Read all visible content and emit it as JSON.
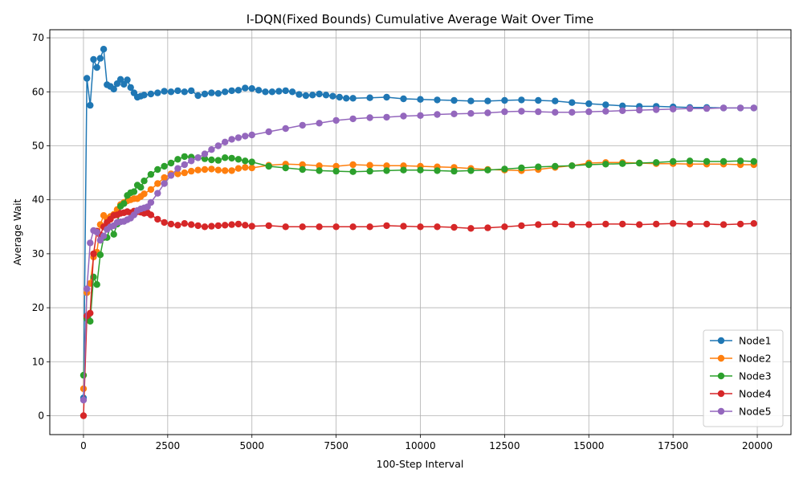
{
  "chart_data": {
    "type": "line",
    "title": "I-DQN(Fixed Bounds) Cumulative Average Wait Over Time",
    "xlabel": "100-Step Interval",
    "ylabel": "Average Wait",
    "xlim": [
      -1000,
      21000
    ],
    "ylim": [
      -3.5,
      71.5
    ],
    "xticks": [
      0,
      2500,
      5000,
      7500,
      10000,
      12500,
      15000,
      17500,
      20000
    ],
    "yticks": [
      0,
      10,
      20,
      30,
      40,
      50,
      60,
      70
    ],
    "grid": true,
    "legend_position": "lower-right",
    "marker": "circle",
    "series": [
      {
        "name": "Node1",
        "color": "#1f77b4",
        "x": [
          0,
          100,
          200,
          300,
          400,
          500,
          600,
          700,
          800,
          900,
          1000,
          1100,
          1200,
          1300,
          1400,
          1500,
          1600,
          1700,
          1800,
          2000,
          2200,
          2400,
          2600,
          2800,
          3000,
          3200,
          3400,
          3600,
          3800,
          4000,
          4200,
          4400,
          4600,
          4800,
          5000,
          5200,
          5400,
          5600,
          5800,
          6000,
          6200,
          6400,
          6600,
          6800,
          7000,
          7200,
          7400,
          7600,
          7800,
          8000,
          8500,
          9000,
          9500,
          10000,
          10500,
          11000,
          11500,
          12000,
          12500,
          13000,
          13500,
          14000,
          14500,
          15000,
          15500,
          16000,
          16500,
          17000,
          17500,
          18000,
          18500,
          19000,
          19500,
          19900
        ],
        "y": [
          3.3,
          62.5,
          57.5,
          66.0,
          64.5,
          66.2,
          67.9,
          61.3,
          61.0,
          60.5,
          61.5,
          62.3,
          61.4,
          62.2,
          60.8,
          59.8,
          59.0,
          59.2,
          59.4,
          59.6,
          59.8,
          60.1,
          60.0,
          60.2,
          60.0,
          60.2,
          59.3,
          59.6,
          59.8,
          59.7,
          60.0,
          60.2,
          60.3,
          60.7,
          60.6,
          60.3,
          60.0,
          60.0,
          60.1,
          60.2,
          60.0,
          59.5,
          59.3,
          59.4,
          59.6,
          59.4,
          59.2,
          59.0,
          58.8,
          58.8,
          58.9,
          59.0,
          58.7,
          58.6,
          58.5,
          58.4,
          58.3,
          58.3,
          58.4,
          58.5,
          58.4,
          58.3,
          58.0,
          57.8,
          57.6,
          57.4,
          57.3,
          57.3,
          57.2,
          57.1,
          57.1,
          57.0,
          57.0,
          57.0
        ]
      },
      {
        "name": "Node2",
        "color": "#ff7f0e",
        "x": [
          0,
          100,
          200,
          300,
          400,
          500,
          600,
          700,
          800,
          900,
          1000,
          1100,
          1200,
          1300,
          1400,
          1500,
          1600,
          1700,
          1800,
          2000,
          2200,
          2400,
          2600,
          2800,
          3000,
          3200,
          3400,
          3600,
          3800,
          4000,
          4200,
          4400,
          4600,
          4800,
          5000,
          5500,
          6000,
          6500,
          7000,
          7500,
          8000,
          8500,
          9000,
          9500,
          10000,
          10500,
          11000,
          11500,
          12000,
          12500,
          13000,
          13500,
          14000,
          14500,
          15000,
          15500,
          16000,
          16500,
          17000,
          17500,
          18000,
          18500,
          19000,
          19500,
          19900
        ],
        "y": [
          5.0,
          22.8,
          24.5,
          29.4,
          30.3,
          35.4,
          37.1,
          36.5,
          36.9,
          37.3,
          38.2,
          39.1,
          39.5,
          39.8,
          40.0,
          40.2,
          40.2,
          40.6,
          41.1,
          41.9,
          43.0,
          44.1,
          44.8,
          44.8,
          45.0,
          45.3,
          45.5,
          45.6,
          45.7,
          45.5,
          45.4,
          45.4,
          45.8,
          46.0,
          45.9,
          46.4,
          46.6,
          46.5,
          46.3,
          46.2,
          46.5,
          46.4,
          46.3,
          46.3,
          46.2,
          46.1,
          46.0,
          45.8,
          45.6,
          45.5,
          45.4,
          45.6,
          46.0,
          46.3,
          46.8,
          46.9,
          46.9,
          46.8,
          46.7,
          46.7,
          46.6,
          46.6,
          46.6,
          46.5,
          46.5
        ]
      },
      {
        "name": "Node3",
        "color": "#2ca02c",
        "x": [
          0,
          100,
          200,
          300,
          400,
          500,
          600,
          700,
          800,
          900,
          1000,
          1100,
          1200,
          1300,
          1400,
          1500,
          1600,
          1700,
          1800,
          2000,
          2200,
          2400,
          2600,
          2800,
          3000,
          3200,
          3400,
          3600,
          3800,
          4000,
          4200,
          4400,
          4600,
          4800,
          5000,
          5500,
          6000,
          6500,
          7000,
          7500,
          8000,
          8500,
          9000,
          9500,
          10000,
          10500,
          11000,
          11500,
          12000,
          12500,
          13000,
          13500,
          14000,
          14500,
          15000,
          15500,
          16000,
          16500,
          17000,
          17500,
          18000,
          18500,
          19000,
          19500,
          19900
        ],
        "y": [
          7.5,
          18.0,
          17.5,
          25.7,
          24.3,
          29.8,
          33.0,
          33.0,
          35.0,
          33.6,
          35.5,
          38.8,
          39.3,
          40.8,
          41.3,
          41.5,
          42.7,
          42.3,
          43.5,
          44.7,
          45.6,
          46.2,
          46.8,
          47.5,
          48.0,
          47.9,
          47.8,
          47.6,
          47.4,
          47.3,
          47.8,
          47.7,
          47.5,
          47.2,
          47.0,
          46.2,
          45.9,
          45.6,
          45.4,
          45.3,
          45.2,
          45.3,
          45.4,
          45.5,
          45.5,
          45.4,
          45.3,
          45.4,
          45.5,
          45.7,
          45.9,
          46.1,
          46.2,
          46.3,
          46.5,
          46.6,
          46.7,
          46.8,
          46.9,
          47.1,
          47.2,
          47.1,
          47.1,
          47.2,
          47.1
        ]
      },
      {
        "name": "Node4",
        "color": "#d62728",
        "x": [
          0,
          100,
          200,
          300,
          400,
          500,
          600,
          700,
          800,
          900,
          1000,
          1100,
          1200,
          1300,
          1400,
          1500,
          1600,
          1700,
          1800,
          1900,
          2000,
          2200,
          2400,
          2600,
          2800,
          3000,
          3200,
          3400,
          3600,
          3800,
          4000,
          4200,
          4400,
          4600,
          4800,
          5000,
          5500,
          6000,
          6500,
          7000,
          7500,
          8000,
          8500,
          9000,
          9500,
          10000,
          10500,
          11000,
          11500,
          12000,
          12500,
          13000,
          13500,
          14000,
          14500,
          15000,
          15500,
          16000,
          16500,
          17000,
          17500,
          18000,
          18500,
          19000,
          19500,
          19900
        ],
        "y": [
          0.0,
          18.5,
          19.0,
          30.0,
          34.2,
          33.5,
          35.0,
          35.8,
          36.4,
          37.1,
          37.2,
          37.5,
          37.6,
          37.8,
          37.6,
          37.9,
          37.8,
          37.7,
          37.5,
          37.6,
          37.2,
          36.4,
          35.8,
          35.5,
          35.3,
          35.6,
          35.4,
          35.2,
          35.0,
          35.1,
          35.2,
          35.3,
          35.4,
          35.5,
          35.3,
          35.1,
          35.2,
          35.0,
          35.0,
          35.0,
          35.0,
          35.0,
          35.0,
          35.2,
          35.1,
          35.0,
          35.0,
          34.9,
          34.7,
          34.8,
          35.0,
          35.2,
          35.4,
          35.5,
          35.4,
          35.4,
          35.5,
          35.5,
          35.4,
          35.5,
          35.6,
          35.5,
          35.5,
          35.4,
          35.5,
          35.6
        ]
      },
      {
        "name": "Node5",
        "color": "#9467bd",
        "x": [
          0,
          100,
          200,
          300,
          400,
          500,
          600,
          700,
          800,
          900,
          1000,
          1100,
          1200,
          1300,
          1400,
          1500,
          1600,
          1700,
          1800,
          1900,
          2000,
          2200,
          2400,
          2600,
          2800,
          3000,
          3200,
          3400,
          3600,
          3800,
          4000,
          4200,
          4400,
          4600,
          4800,
          5000,
          5500,
          6000,
          6500,
          7000,
          7500,
          8000,
          8500,
          9000,
          9500,
          10000,
          10500,
          11000,
          11500,
          12000,
          12500,
          13000,
          13500,
          14000,
          14500,
          15000,
          15500,
          16000,
          16500,
          17000,
          17500,
          18000,
          18500,
          19000,
          19500,
          19900
        ],
        "y": [
          2.9,
          23.5,
          32.0,
          34.3,
          34.0,
          32.5,
          33.3,
          34.5,
          35.0,
          35.2,
          35.8,
          35.9,
          36.0,
          36.3,
          36.6,
          37.2,
          38.0,
          38.3,
          38.5,
          38.7,
          39.5,
          41.2,
          43.0,
          44.5,
          45.8,
          46.5,
          47.2,
          47.8,
          48.5,
          49.3,
          50.0,
          50.7,
          51.2,
          51.5,
          51.8,
          52.0,
          52.6,
          53.2,
          53.8,
          54.2,
          54.7,
          55.0,
          55.2,
          55.3,
          55.5,
          55.6,
          55.8,
          55.9,
          56.0,
          56.1,
          56.3,
          56.4,
          56.3,
          56.2,
          56.2,
          56.3,
          56.4,
          56.5,
          56.6,
          56.7,
          56.8,
          56.9,
          56.9,
          57.0,
          57.0,
          57.0
        ]
      }
    ]
  }
}
